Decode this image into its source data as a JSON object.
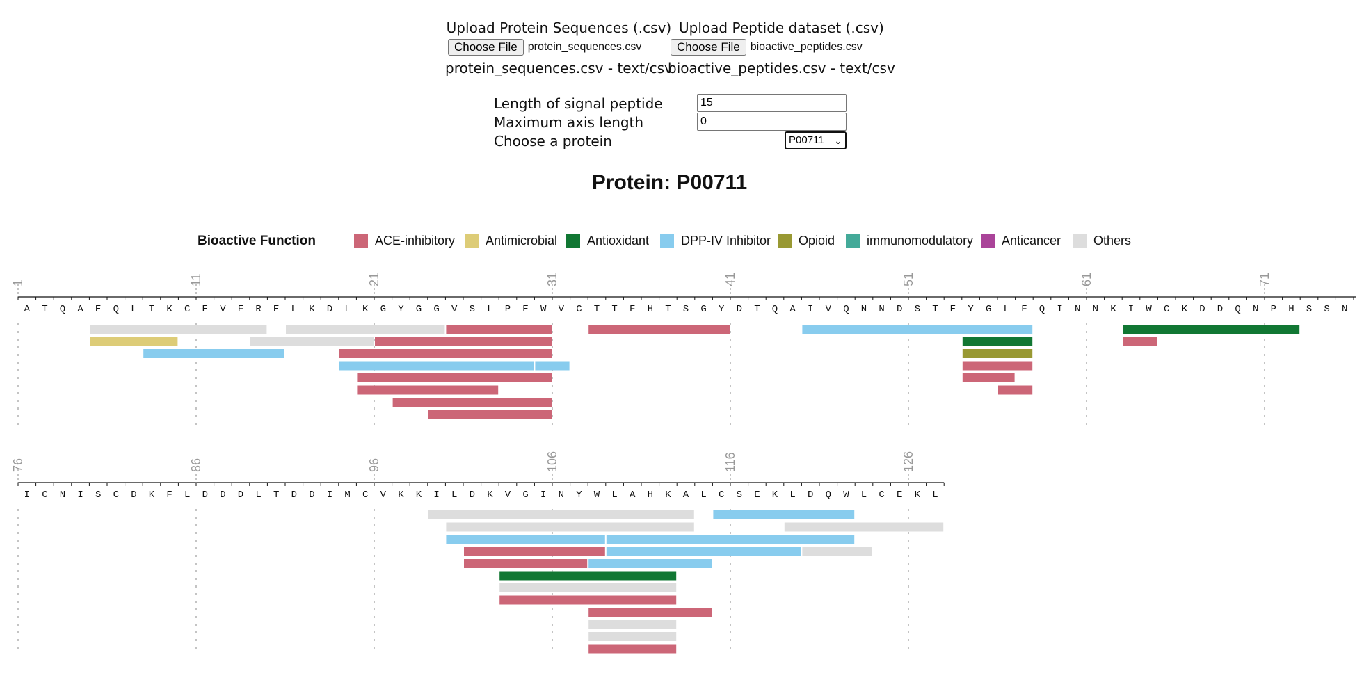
{
  "uploads": [
    {
      "title": "Upload Protein Sequences (.csv)",
      "button": "Choose File",
      "filename": "protein_sequences.csv",
      "meta": "protein_sequences.csv - text/csv"
    },
    {
      "title": "Upload Peptide dataset (.csv)",
      "button": "Choose File",
      "filename": "bioactive_peptides.csv",
      "meta": "bioactive_peptides.csv - text/csv"
    }
  ],
  "params": {
    "signal_label": "Length of signal peptide",
    "signal_value": "15",
    "axis_label": "Maximum axis length",
    "axis_value": "0",
    "protein_label": "Choose a protein",
    "protein_value": "P00711"
  },
  "title": "Protein: P00711",
  "legend": {
    "title": "Bioactive Function",
    "items": [
      {
        "label": "ACE-inhibitory",
        "color": "#cc6677"
      },
      {
        "label": "Antimicrobial",
        "color": "#ddcc77"
      },
      {
        "label": "Antioxidant",
        "color": "#117733"
      },
      {
        "label": "DPP-IV Inhibitor",
        "color": "#88ccee"
      },
      {
        "label": "Opioid",
        "color": "#999933"
      },
      {
        "label": "immunomodulatory",
        "color": "#44aa99"
      },
      {
        "label": "Anticancer",
        "color": "#aa4499"
      },
      {
        "label": "Others",
        "color": "#dddddd"
      }
    ]
  },
  "sequence": "ATQAEQLTKCEVFRELKDLKGYGGVSLPEWVCTTFHTSGYDTQAIVQNNDSTEYGLFQINNKIWCKDDQNPHSSNICNISCDKFLDDDLTDDIMCVKKILDKVGINYWLAHKALCSEKLDQWLCEKL",
  "chart_data": {
    "type": "peptide-map",
    "residues_per_row": 75,
    "tick_step": 10,
    "rows": [
      {
        "start": 1,
        "tick_labels": [
          "1",
          "11",
          "21",
          "31",
          "41",
          "51",
          "61",
          "71"
        ],
        "peptides": [
          {
            "function": "Others",
            "start": 5,
            "end": 14
          },
          {
            "function": "Others",
            "start": 16,
            "end": 24
          },
          {
            "function": "ACE-inhibitory",
            "start": 25,
            "end": 30
          },
          {
            "function": "ACE-inhibitory",
            "start": 33,
            "end": 40
          },
          {
            "function": "DPP-IV Inhibitor",
            "start": 45,
            "end": 57
          },
          {
            "function": "Antioxidant",
            "start": 63,
            "end": 72
          },
          {
            "function": "Antimicrobial",
            "start": 5,
            "end": 9
          },
          {
            "function": "Others",
            "start": 14,
            "end": 20
          },
          {
            "function": "ACE-inhibitory",
            "start": 21,
            "end": 30
          },
          {
            "function": "Antioxidant",
            "start": 54,
            "end": 57
          },
          {
            "function": "ACE-inhibitory",
            "start": 63,
            "end": 64
          },
          {
            "function": "DPP-IV Inhibitor",
            "start": 8,
            "end": 15
          },
          {
            "function": "ACE-inhibitory",
            "start": 19,
            "end": 30
          },
          {
            "function": "Opioid",
            "start": 54,
            "end": 57
          },
          {
            "function": "DPP-IV Inhibitor",
            "start": 19,
            "end": 29
          },
          {
            "function": "DPP-IV Inhibitor",
            "start": 30,
            "end": 31
          },
          {
            "function": "ACE-inhibitory",
            "start": 54,
            "end": 57
          },
          {
            "function": "ACE-inhibitory",
            "start": 20,
            "end": 30
          },
          {
            "function": "ACE-inhibitory",
            "start": 54,
            "end": 56
          },
          {
            "function": "ACE-inhibitory",
            "start": 20,
            "end": 27
          },
          {
            "function": "ACE-inhibitory",
            "start": 56,
            "end": 57
          },
          {
            "function": "ACE-inhibitory",
            "start": 22,
            "end": 30
          },
          {
            "function": "ACE-inhibitory",
            "start": 24,
            "end": 30
          }
        ]
      },
      {
        "start": 76,
        "tick_labels": [
          "76",
          "86",
          "96",
          "106",
          "116",
          "126"
        ],
        "peptides": [
          {
            "function": "Others",
            "start": 99,
            "end": 113
          },
          {
            "function": "DPP-IV Inhibitor",
            "start": 115,
            "end": 122
          },
          {
            "function": "Others",
            "start": 100,
            "end": 113
          },
          {
            "function": "Others",
            "start": 119,
            "end": 127
          },
          {
            "function": "DPP-IV Inhibitor",
            "start": 100,
            "end": 108
          },
          {
            "function": "DPP-IV Inhibitor",
            "start": 109,
            "end": 122
          },
          {
            "function": "ACE-inhibitory",
            "start": 101,
            "end": 108
          },
          {
            "function": "DPP-IV Inhibitor",
            "start": 109,
            "end": 119
          },
          {
            "function": "Others",
            "start": 120,
            "end": 123
          },
          {
            "function": "ACE-inhibitory",
            "start": 101,
            "end": 107
          },
          {
            "function": "DPP-IV Inhibitor",
            "start": 108,
            "end": 114
          },
          {
            "function": "Antioxidant",
            "start": 103,
            "end": 112
          },
          {
            "function": "Others",
            "start": 103,
            "end": 112
          },
          {
            "function": "ACE-inhibitory",
            "start": 103,
            "end": 112
          },
          {
            "function": "ACE-inhibitory",
            "start": 108,
            "end": 114
          },
          {
            "function": "Others",
            "start": 108,
            "end": 112
          },
          {
            "function": "Others",
            "start": 108,
            "end": 112
          },
          {
            "function": "ACE-inhibitory",
            "start": 108,
            "end": 112
          }
        ]
      }
    ]
  }
}
